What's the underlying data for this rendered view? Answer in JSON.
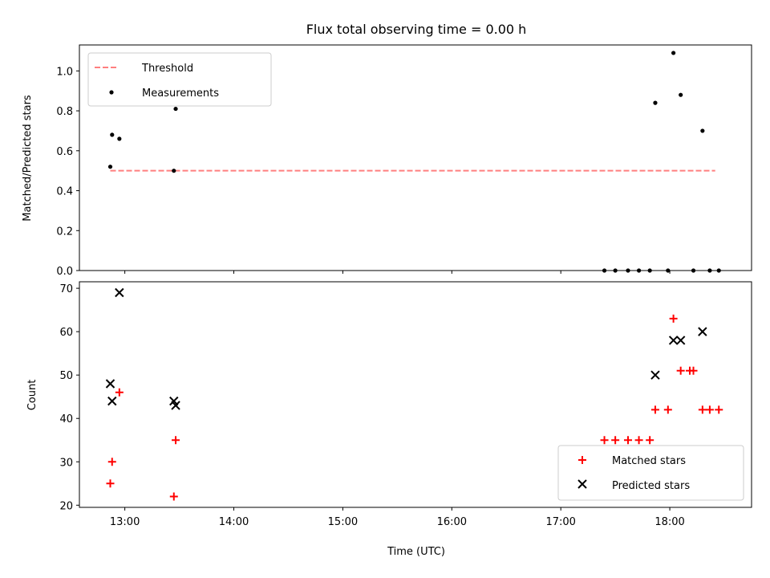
{
  "chart_data": [
    {
      "type": "scatter",
      "title": "Flux total observing time = 0.00 h",
      "xlabel": "",
      "ylabel": "Matched/Predicted stars",
      "xlim": [
        "12:35",
        "18:45"
      ],
      "ylim": [
        0,
        1.13
      ],
      "yticks": [
        0.0,
        0.2,
        0.4,
        0.6,
        0.8,
        1.0
      ],
      "ytick_labels": [
        "0.0",
        "0.2",
        "0.4",
        "0.6",
        "0.8",
        "1.0"
      ],
      "legend": {
        "position": "top-left"
      },
      "series": [
        {
          "name": "Threshold",
          "style": "dashed-line",
          "color": "#ff7f7f",
          "x": [
            "12:52",
            "18:25"
          ],
          "y": [
            0.5,
            0.5
          ]
        },
        {
          "name": "Measurements",
          "style": "dot",
          "color": "#000000",
          "x": [
            "12:52",
            "12:53",
            "12:57",
            "13:27",
            "13:28",
            "17:24",
            "17:30",
            "17:37",
            "17:43",
            "17:49",
            "17:52",
            "17:59",
            "18:02",
            "18:06",
            "18:13",
            "18:18",
            "18:22",
            "18:27"
          ],
          "y": [
            0.52,
            0.68,
            0.66,
            0.5,
            0.81,
            0.0,
            0.0,
            0.0,
            0.0,
            0.0,
            0.84,
            0.0,
            1.09,
            0.88,
            0.0,
            0.7,
            0.0,
            0.0
          ]
        }
      ]
    },
    {
      "type": "scatter",
      "title": "",
      "xlabel": "Time (UTC)",
      "ylabel": "Count",
      "xlim": [
        "12:35",
        "18:45"
      ],
      "ylim": [
        19.5,
        71.5
      ],
      "xticks": [
        "13:00",
        "14:00",
        "15:00",
        "16:00",
        "17:00",
        "18:00"
      ],
      "yticks": [
        20,
        30,
        40,
        50,
        60,
        70
      ],
      "ytick_labels": [
        "20",
        "30",
        "40",
        "50",
        "60",
        "70"
      ],
      "legend": {
        "position": "bottom-right"
      },
      "series": [
        {
          "name": "Matched stars",
          "marker": "plus",
          "color": "#ff0000",
          "x": [
            "12:52",
            "12:53",
            "12:57",
            "13:27",
            "13:28",
            "17:24",
            "17:30",
            "17:37",
            "17:43",
            "17:49",
            "17:52",
            "17:59",
            "18:02",
            "18:06",
            "18:11",
            "18:13",
            "18:18",
            "18:22",
            "18:27"
          ],
          "y": [
            25,
            30,
            46,
            22,
            35,
            35,
            35,
            35,
            35,
            35,
            42,
            42,
            63,
            51,
            51,
            51,
            42,
            42,
            42
          ]
        },
        {
          "name": "Predicted stars",
          "marker": "x",
          "color": "#000000",
          "x": [
            "12:52",
            "12:53",
            "12:57",
            "13:27",
            "13:28",
            "17:52",
            "18:02",
            "18:06",
            "18:18"
          ],
          "y": [
            48,
            44,
            69,
            44,
            43,
            50,
            58,
            58,
            60
          ]
        }
      ]
    }
  ]
}
